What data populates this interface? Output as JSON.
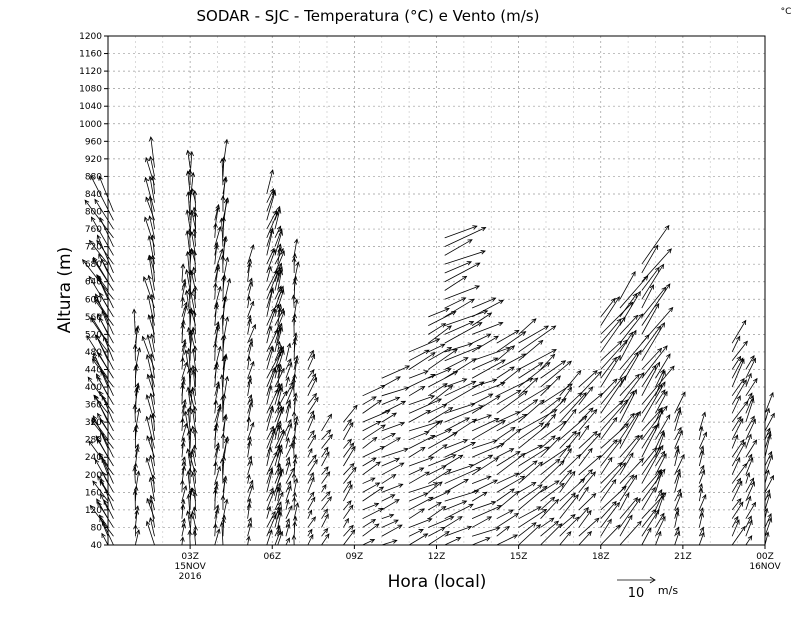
{
  "chart_data": {
    "type": "vector-field",
    "title": "SODAR - SJC - Temperatura (°C) e Vento (m/s)",
    "corner_unit": "°C",
    "xlabel": "Hora (local)",
    "ylabel": "Altura (m)",
    "ylim": [
      40,
      1200
    ],
    "ytick_step": 40,
    "xlim_hours": [
      0,
      24
    ],
    "x_ticks": [
      {
        "hour": 3,
        "lines": [
          "03Z",
          "15NOV",
          "2016"
        ]
      },
      {
        "hour": 6,
        "lines": [
          "06Z"
        ]
      },
      {
        "hour": 9,
        "lines": [
          "09Z"
        ]
      },
      {
        "hour": 12,
        "lines": [
          "12Z"
        ]
      },
      {
        "hour": 15,
        "lines": [
          "15Z"
        ]
      },
      {
        "hour": 18,
        "lines": [
          "18Z"
        ]
      },
      {
        "hour": 21,
        "lines": [
          "21Z"
        ]
      },
      {
        "hour": 24,
        "lines": [
          "00Z",
          "16NOV"
        ]
      }
    ],
    "reference_vector": {
      "speed": 10,
      "label": "10",
      "unit": "m/s"
    },
    "profile_altitude_step_m": 20,
    "profiles": [
      {
        "hour": 0.0,
        "top": 680,
        "dir": 150,
        "speed": 6
      },
      {
        "hour": 0.2,
        "top": 800,
        "dir": 150,
        "speed": 10
      },
      {
        "hour": 1.0,
        "top": 520,
        "dir": 185,
        "speed": 5
      },
      {
        "hour": 1.7,
        "top": 900,
        "dir": 168,
        "speed": 7
      },
      {
        "hour": 2.7,
        "top": 640,
        "dir": 190,
        "speed": 4
      },
      {
        "hour": 3.0,
        "top": 900,
        "dir": 178,
        "speed": 6
      },
      {
        "hour": 3.2,
        "top": 820,
        "dir": 172,
        "speed": 5
      },
      {
        "hour": 3.9,
        "top": 790,
        "dir": 190,
        "speed": 5
      },
      {
        "hour": 4.2,
        "top": 910,
        "dir": 185,
        "speed": 6
      },
      {
        "hour": 5.1,
        "top": 680,
        "dir": 195,
        "speed": 4
      },
      {
        "hour": 5.8,
        "top": 840,
        "dir": 200,
        "speed": 6
      },
      {
        "hour": 6.1,
        "top": 780,
        "dir": 200,
        "speed": 5
      },
      {
        "hour": 6.2,
        "top": 700,
        "dir": 195,
        "speed": 4
      },
      {
        "hour": 6.5,
        "top": 460,
        "dir": 200,
        "speed": 4
      },
      {
        "hour": 6.8,
        "top": 700,
        "dir": 185,
        "speed": 4
      },
      {
        "hour": 7.3,
        "top": 470,
        "dir": 210,
        "speed": 4
      },
      {
        "hour": 7.8,
        "top": 300,
        "dir": 215,
        "speed": 4
      },
      {
        "hour": 8.6,
        "top": 320,
        "dir": 215,
        "speed": 5
      },
      {
        "hour": 9.3,
        "top": 380,
        "dir": 240,
        "speed": 6
      },
      {
        "hour": 10.0,
        "top": 420,
        "dir": 245,
        "speed": 6
      },
      {
        "hour": 11.0,
        "top": 480,
        "dir": 245,
        "speed": 7
      },
      {
        "hour": 11.7,
        "top": 560,
        "dir": 240,
        "speed": 7
      },
      {
        "hour": 12.3,
        "top": 740,
        "dir": 245,
        "speed": 9
      },
      {
        "hour": 13.3,
        "top": 580,
        "dir": 245,
        "speed": 8
      },
      {
        "hour": 14.2,
        "top": 500,
        "dir": 238,
        "speed": 8
      },
      {
        "hour": 15.0,
        "top": 520,
        "dir": 235,
        "speed": 9
      },
      {
        "hour": 15.8,
        "top": 440,
        "dir": 230,
        "speed": 8
      },
      {
        "hour": 16.5,
        "top": 380,
        "dir": 222,
        "speed": 8
      },
      {
        "hour": 17.2,
        "top": 400,
        "dir": 222,
        "speed": 7
      },
      {
        "hour": 18.0,
        "top": 560,
        "dir": 220,
        "speed": 9
      },
      {
        "hour": 18.7,
        "top": 600,
        "dir": 215,
        "speed": 9
      },
      {
        "hour": 19.5,
        "top": 680,
        "dir": 215,
        "speed": 10
      },
      {
        "hour": 20.0,
        "top": 420,
        "dir": 205,
        "speed": 6
      },
      {
        "hour": 20.7,
        "top": 340,
        "dir": 200,
        "speed": 5
      },
      {
        "hour": 21.6,
        "top": 300,
        "dir": 198,
        "speed": 4
      },
      {
        "hour": 22.8,
        "top": 500,
        "dir": 210,
        "speed": 6
      },
      {
        "hour": 23.3,
        "top": 440,
        "dir": 205,
        "speed": 5
      },
      {
        "hour": 24.0,
        "top": 340,
        "dir": 200,
        "speed": 5
      }
    ]
  }
}
